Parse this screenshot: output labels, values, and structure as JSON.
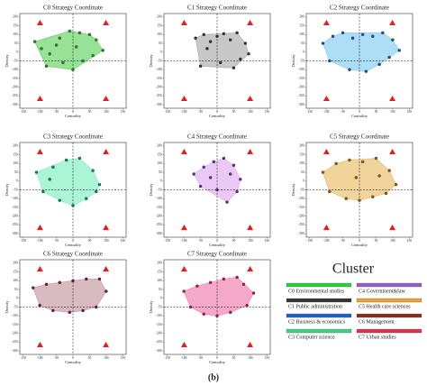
{
  "chart_data": [
    {
      "type": "scatter",
      "title": "C0 Strategy Coordinate",
      "xlabel": "Centrality",
      "ylabel": "Density",
      "hull_color": "#74d874",
      "color": "#2e7d32",
      "xlim": [
        -160,
        160
      ],
      "ylim": [
        -320,
        220
      ],
      "xticks": [
        -150,
        -100,
        -50,
        0,
        50,
        100,
        150
      ],
      "yticks": [
        -300,
        -250,
        -200,
        -150,
        -100,
        -50,
        0,
        50,
        100,
        150,
        200
      ],
      "x": [
        -115,
        -95,
        -70,
        -40,
        -10,
        20,
        50,
        70,
        90,
        -30,
        0,
        30,
        -80,
        60,
        -50,
        10
      ],
      "values": [
        60,
        20,
        -10,
        80,
        120,
        110,
        100,
        70,
        10,
        -60,
        -100,
        -50,
        -80,
        -20,
        40,
        30
      ]
    },
    {
      "type": "scatter",
      "title": "C1 Strategy Coordinate",
      "xlabel": "Centrality",
      "ylabel": "Density",
      "hull_color": "#b5b5b5",
      "color": "#333333",
      "xlim": [
        -160,
        160
      ],
      "ylim": [
        -320,
        220
      ],
      "xticks": [
        -150,
        -100,
        -50,
        0,
        50,
        100,
        150
      ],
      "yticks": [
        -300,
        -250,
        -200,
        -150,
        -100,
        -50,
        0,
        50,
        100,
        150,
        200
      ],
      "x": [
        -65,
        -40,
        -20,
        0,
        20,
        40,
        60,
        85,
        95,
        -50,
        10,
        50,
        -30,
        70
      ],
      "values": [
        80,
        100,
        60,
        90,
        105,
        70,
        110,
        50,
        -10,
        -80,
        -60,
        -90,
        20,
        -40
      ]
    },
    {
      "type": "scatter",
      "title": "C2 Strategy Coordinate",
      "xlabel": "Centrality",
      "ylabel": "Density",
      "hull_color": "#93d3f2",
      "color": "#1f4e9c",
      "xlim": [
        -160,
        160
      ],
      "ylim": [
        -320,
        220
      ],
      "xticks": [
        -150,
        -100,
        -50,
        0,
        50,
        100,
        150
      ],
      "yticks": [
        -300,
        -250,
        -200,
        -150,
        -100,
        -50,
        0,
        50,
        100,
        150,
        200
      ],
      "x": [
        -110,
        -80,
        -50,
        -20,
        10,
        40,
        70,
        100,
        120,
        -90,
        -30,
        20,
        60,
        90
      ],
      "values": [
        50,
        90,
        110,
        80,
        100,
        90,
        110,
        70,
        10,
        -50,
        -100,
        -110,
        -70,
        -30
      ]
    },
    {
      "type": "scatter",
      "title": "C3 Strategy Coordinate",
      "xlabel": "Centrality",
      "ylabel": "Density",
      "hull_color": "#8ff0c8",
      "color": "#1b7a5a",
      "xlim": [
        -160,
        160
      ],
      "ylim": [
        -320,
        220
      ],
      "xticks": [
        -150,
        -100,
        -50,
        0,
        50,
        100,
        150
      ],
      "yticks": [
        -300,
        -250,
        -200,
        -150,
        -100,
        -50,
        0,
        50,
        100,
        150,
        200
      ],
      "x": [
        -110,
        -60,
        -20,
        20,
        60,
        80,
        -90,
        -40,
        0,
        40,
        70,
        -70
      ],
      "values": [
        50,
        80,
        120,
        130,
        60,
        -20,
        -60,
        -110,
        -140,
        -100,
        -60,
        10
      ]
    },
    {
      "type": "scatter",
      "title": "C4 Strategy Coordinate",
      "xlabel": "Centrality",
      "ylabel": "Density",
      "hull_color": "#e3b8f2",
      "color": "#6a2c8a",
      "xlim": [
        -160,
        160
      ],
      "ylim": [
        -320,
        220
      ],
      "xticks": [
        -150,
        -100,
        -50,
        0,
        50,
        100,
        150
      ],
      "yticks": [
        -300,
        -250,
        -200,
        -150,
        -100,
        -50,
        0,
        50,
        100,
        150,
        200
      ],
      "x": [
        -70,
        -40,
        -10,
        20,
        50,
        70,
        -50,
        0,
        30,
        60,
        -20,
        40
      ],
      "values": [
        40,
        80,
        110,
        130,
        90,
        10,
        -30,
        -50,
        -120,
        -60,
        20,
        40
      ]
    },
    {
      "type": "scatter",
      "title": "C5 Strategy Coordinate",
      "xlabel": "Centrality",
      "ylabel": "Density",
      "hull_color": "#ebc57a",
      "color": "#8a5a10",
      "xlim": [
        -160,
        160
      ],
      "ylim": [
        -320,
        220
      ],
      "xticks": [
        -150,
        -100,
        -50,
        0,
        50,
        100,
        150
      ],
      "yticks": [
        -300,
        -250,
        -200,
        -150,
        -100,
        -50,
        0,
        50,
        100,
        150,
        200
      ],
      "x": [
        -110,
        -70,
        -30,
        10,
        50,
        90,
        110,
        -90,
        -40,
        0,
        40,
        80,
        -10,
        60
      ],
      "values": [
        50,
        100,
        120,
        110,
        130,
        60,
        -20,
        -60,
        -100,
        -110,
        -90,
        -70,
        20,
        30
      ]
    },
    {
      "type": "scatter",
      "title": "C6 Strategy Coordinate",
      "xlabel": "Centrality",
      "ylabel": "Density",
      "hull_color": "#c9a4ab",
      "color": "#6a2030",
      "xlim": [
        -160,
        160
      ],
      "ylim": [
        -320,
        220
      ],
      "xticks": [
        -150,
        -100,
        -50,
        0,
        50,
        100,
        150
      ],
      "yticks": [
        -300,
        -250,
        -200,
        -150,
        -100,
        -50,
        0,
        50,
        100,
        150,
        200
      ],
      "x": [
        -120,
        -80,
        -40,
        0,
        40,
        80,
        100,
        -100,
        -60,
        -10,
        30,
        70
      ],
      "values": [
        60,
        80,
        90,
        100,
        110,
        110,
        40,
        -40,
        -70,
        -80,
        -70,
        -50
      ]
    },
    {
      "type": "scatter",
      "title": "C7 Strategy Coordinate",
      "xlabel": "Centrality",
      "ylabel": "Density",
      "hull_color": "#f28cb8",
      "color": "#a0204a",
      "xlim": [
        -160,
        160
      ],
      "ylim": [
        -320,
        220
      ],
      "xticks": [
        -150,
        -100,
        -50,
        0,
        50,
        100,
        150
      ],
      "yticks": [
        -300,
        -250,
        -200,
        -150,
        -100,
        -50,
        0,
        50,
        100,
        150,
        200
      ],
      "x": [
        -100,
        -60,
        -20,
        20,
        60,
        80,
        110,
        -80,
        -40,
        0,
        40,
        90
      ],
      "values": [
        40,
        70,
        90,
        110,
        120,
        80,
        30,
        -50,
        -90,
        -100,
        -80,
        -40
      ]
    }
  ],
  "legend": {
    "title": "Cluster",
    "items": [
      {
        "label": "C0 Environmental studies",
        "color": "#2ecc40"
      },
      {
        "label": "C4 Government&law",
        "color": "#9060c0"
      },
      {
        "label": "C1 Public administration",
        "color": "#333333"
      },
      {
        "label": "C5 Health care sciences",
        "color": "#f0a030"
      },
      {
        "label": "C2 Business & economics",
        "color": "#2060c0"
      },
      {
        "label": "C6 Management",
        "color": "#803020"
      },
      {
        "label": "C3 Computer science",
        "color": "#40d080"
      },
      {
        "label": "C7 Urban studies",
        "color": "#e03050"
      }
    ]
  },
  "caption": "(b)"
}
